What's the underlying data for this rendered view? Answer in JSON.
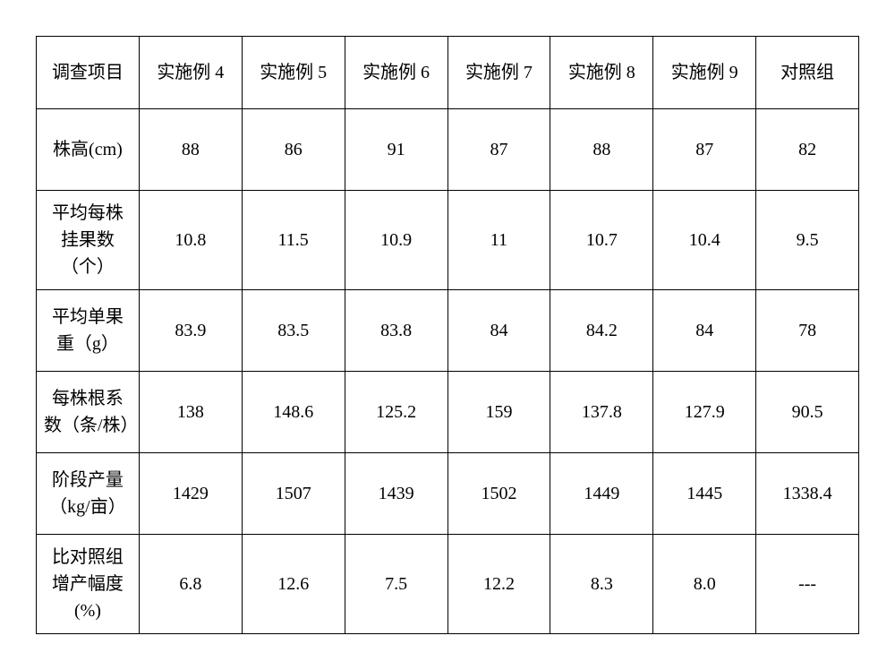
{
  "table": {
    "columns": [
      "调查项目",
      "实施例 4",
      "实施例 5",
      "实施例 6",
      "实施例 7",
      "实施例 8",
      "实施例 9",
      "对照组"
    ],
    "rows": [
      {
        "label": "株高(cm)",
        "values": [
          "88",
          "86",
          "91",
          "87",
          "88",
          "87",
          "82"
        ]
      },
      {
        "label": "平均每株挂果数（个）",
        "values": [
          "10.8",
          "11.5",
          "10.9",
          "11",
          "10.7",
          "10.4",
          "9.5"
        ]
      },
      {
        "label": "平均单果重（g）",
        "values": [
          "83.9",
          "83.5",
          "83.8",
          "84",
          "84.2",
          "84",
          "78"
        ]
      },
      {
        "label": "每株根系数（条/株）",
        "values": [
          "138",
          "148.6",
          "125.2",
          "159",
          "137.8",
          "127.9",
          "90.5"
        ]
      },
      {
        "label": "阶段产量（kg/亩）",
        "values": [
          "1429",
          "1507",
          "1439",
          "1502",
          "1449",
          "1445",
          "1338.4"
        ]
      },
      {
        "label": "比对照组增产幅度(%)",
        "values": [
          "6.8",
          "12.6",
          "7.5",
          "12.2",
          "8.3",
          "8.0",
          "---"
        ]
      }
    ],
    "border_color": "#000000",
    "background_color": "#ffffff",
    "text_color": "#000000",
    "font_size_pt": 15,
    "col_count": 8,
    "row_count": 7
  }
}
